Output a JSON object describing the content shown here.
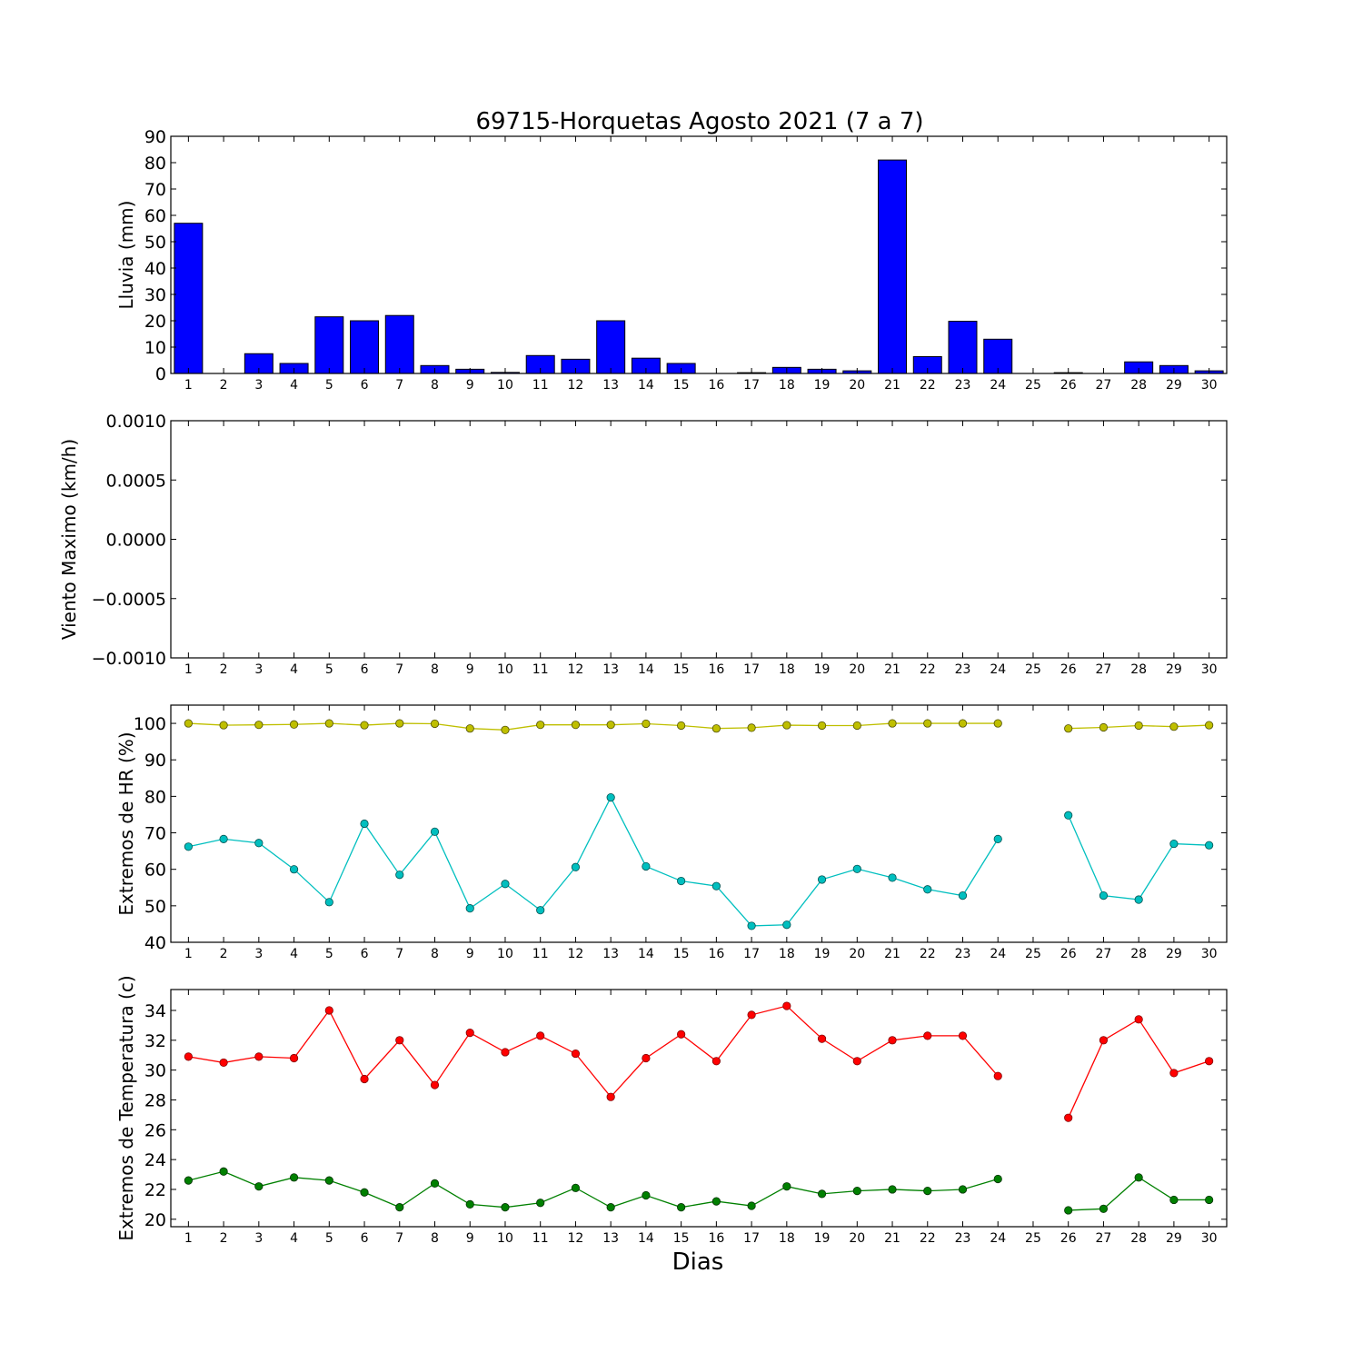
{
  "figure": {
    "title": "69715-Horquetas Agosto 2021  (7 a 7)",
    "xlabel": "Dias"
  },
  "chart_data": [
    {
      "type": "bar",
      "ylabel": "Lluvia (mm)",
      "ylim": [
        0,
        90
      ],
      "yticks": [
        "0",
        "10",
        "20",
        "30",
        "40",
        "50",
        "60",
        "70",
        "80",
        "90"
      ],
      "categories": [
        "1",
        "2",
        "3",
        "4",
        "5",
        "6",
        "7",
        "8",
        "9",
        "10",
        "11",
        "12",
        "13",
        "14",
        "15",
        "16",
        "17",
        "18",
        "19",
        "20",
        "21",
        "22",
        "23",
        "24",
        "25",
        "26",
        "27",
        "28",
        "29",
        "30"
      ],
      "series": [
        {
          "color": "#0000ff",
          "values": [
            57,
            0,
            7.5,
            3.8,
            21.5,
            20,
            22,
            3,
            1.6,
            0.4,
            6.8,
            5.4,
            20,
            5.8,
            3.8,
            0,
            0.3,
            2.3,
            1.6,
            1,
            81,
            6.4,
            19.8,
            13,
            null,
            0.3,
            0,
            4.4,
            3,
            1
          ]
        }
      ]
    },
    {
      "type": "line",
      "ylabel": "Viento Maximo (km/h)",
      "ylim": [
        -0.001,
        0.001
      ],
      "yticks": [
        "0.0010",
        "0.0005",
        "0.0000",
        "−0.0005",
        "−0.0010"
      ],
      "categories": [
        "1",
        "2",
        "3",
        "4",
        "5",
        "6",
        "7",
        "8",
        "9",
        "10",
        "11",
        "12",
        "13",
        "14",
        "15",
        "16",
        "17",
        "18",
        "19",
        "20",
        "21",
        "22",
        "23",
        "24",
        "25",
        "26",
        "27",
        "28",
        "29",
        "30"
      ],
      "series": []
    },
    {
      "type": "line",
      "ylabel": "Extremos de HR (%)",
      "ylim": [
        40,
        105
      ],
      "yticks": [
        "40",
        "50",
        "60",
        "70",
        "80",
        "90",
        "100"
      ],
      "categories": [
        "1",
        "2",
        "3",
        "4",
        "5",
        "6",
        "7",
        "8",
        "9",
        "10",
        "11",
        "12",
        "13",
        "14",
        "15",
        "16",
        "17",
        "18",
        "19",
        "20",
        "21",
        "22",
        "23",
        "24",
        "25",
        "26",
        "27",
        "28",
        "29",
        "30"
      ],
      "series": [
        {
          "color": "#bfbf00",
          "values": [
            100,
            99.5,
            99.6,
            99.7,
            100,
            99.5,
            100,
            99.9,
            98.6,
            98.2,
            99.6,
            99.6,
            99.6,
            99.9,
            99.4,
            98.6,
            98.8,
            99.5,
            99.4,
            99.4,
            100,
            100,
            100,
            100,
            null,
            98.6,
            98.9,
            99.4,
            99.1,
            99.5
          ]
        },
        {
          "color": "#00bfbf",
          "values": [
            66.2,
            68.3,
            67.2,
            60,
            51,
            72.5,
            58.5,
            70.3,
            49.3,
            56,
            48.8,
            60.6,
            79.7,
            60.8,
            56.8,
            55.4,
            44.5,
            44.8,
            57.2,
            60.1,
            57.7,
            54.5,
            52.8,
            68.3,
            null,
            74.8,
            52.8,
            51.7,
            67,
            66.6
          ]
        }
      ]
    },
    {
      "type": "line",
      "ylabel": "Extremos de Temperatura (c)",
      "ylim": [
        19.5,
        35.4
      ],
      "yticks": [
        "20",
        "22",
        "24",
        "26",
        "28",
        "30",
        "32",
        "34"
      ],
      "categories": [
        "1",
        "2",
        "3",
        "4",
        "5",
        "6",
        "7",
        "8",
        "9",
        "10",
        "11",
        "12",
        "13",
        "14",
        "15",
        "16",
        "17",
        "18",
        "19",
        "20",
        "21",
        "22",
        "23",
        "24",
        "25",
        "26",
        "27",
        "28",
        "29",
        "30"
      ],
      "series": [
        {
          "color": "#ff0000",
          "values": [
            30.9,
            30.5,
            30.9,
            30.8,
            34,
            29.4,
            32,
            29,
            32.5,
            31.2,
            32.3,
            31.1,
            28.2,
            30.8,
            32.4,
            30.6,
            33.7,
            34.3,
            32.1,
            30.6,
            32,
            32.3,
            32.3,
            29.6,
            null,
            26.8,
            32,
            33.4,
            29.8,
            30.6
          ]
        },
        {
          "color": "#008000",
          "values": [
            22.6,
            23.2,
            22.2,
            22.8,
            22.6,
            21.8,
            20.8,
            22.4,
            21,
            20.8,
            21.1,
            22.1,
            20.8,
            21.6,
            20.8,
            21.2,
            20.9,
            22.2,
            21.7,
            21.9,
            22,
            21.9,
            22,
            22.7,
            null,
            20.6,
            20.7,
            22.8,
            21.3,
            21.3
          ]
        }
      ]
    }
  ]
}
